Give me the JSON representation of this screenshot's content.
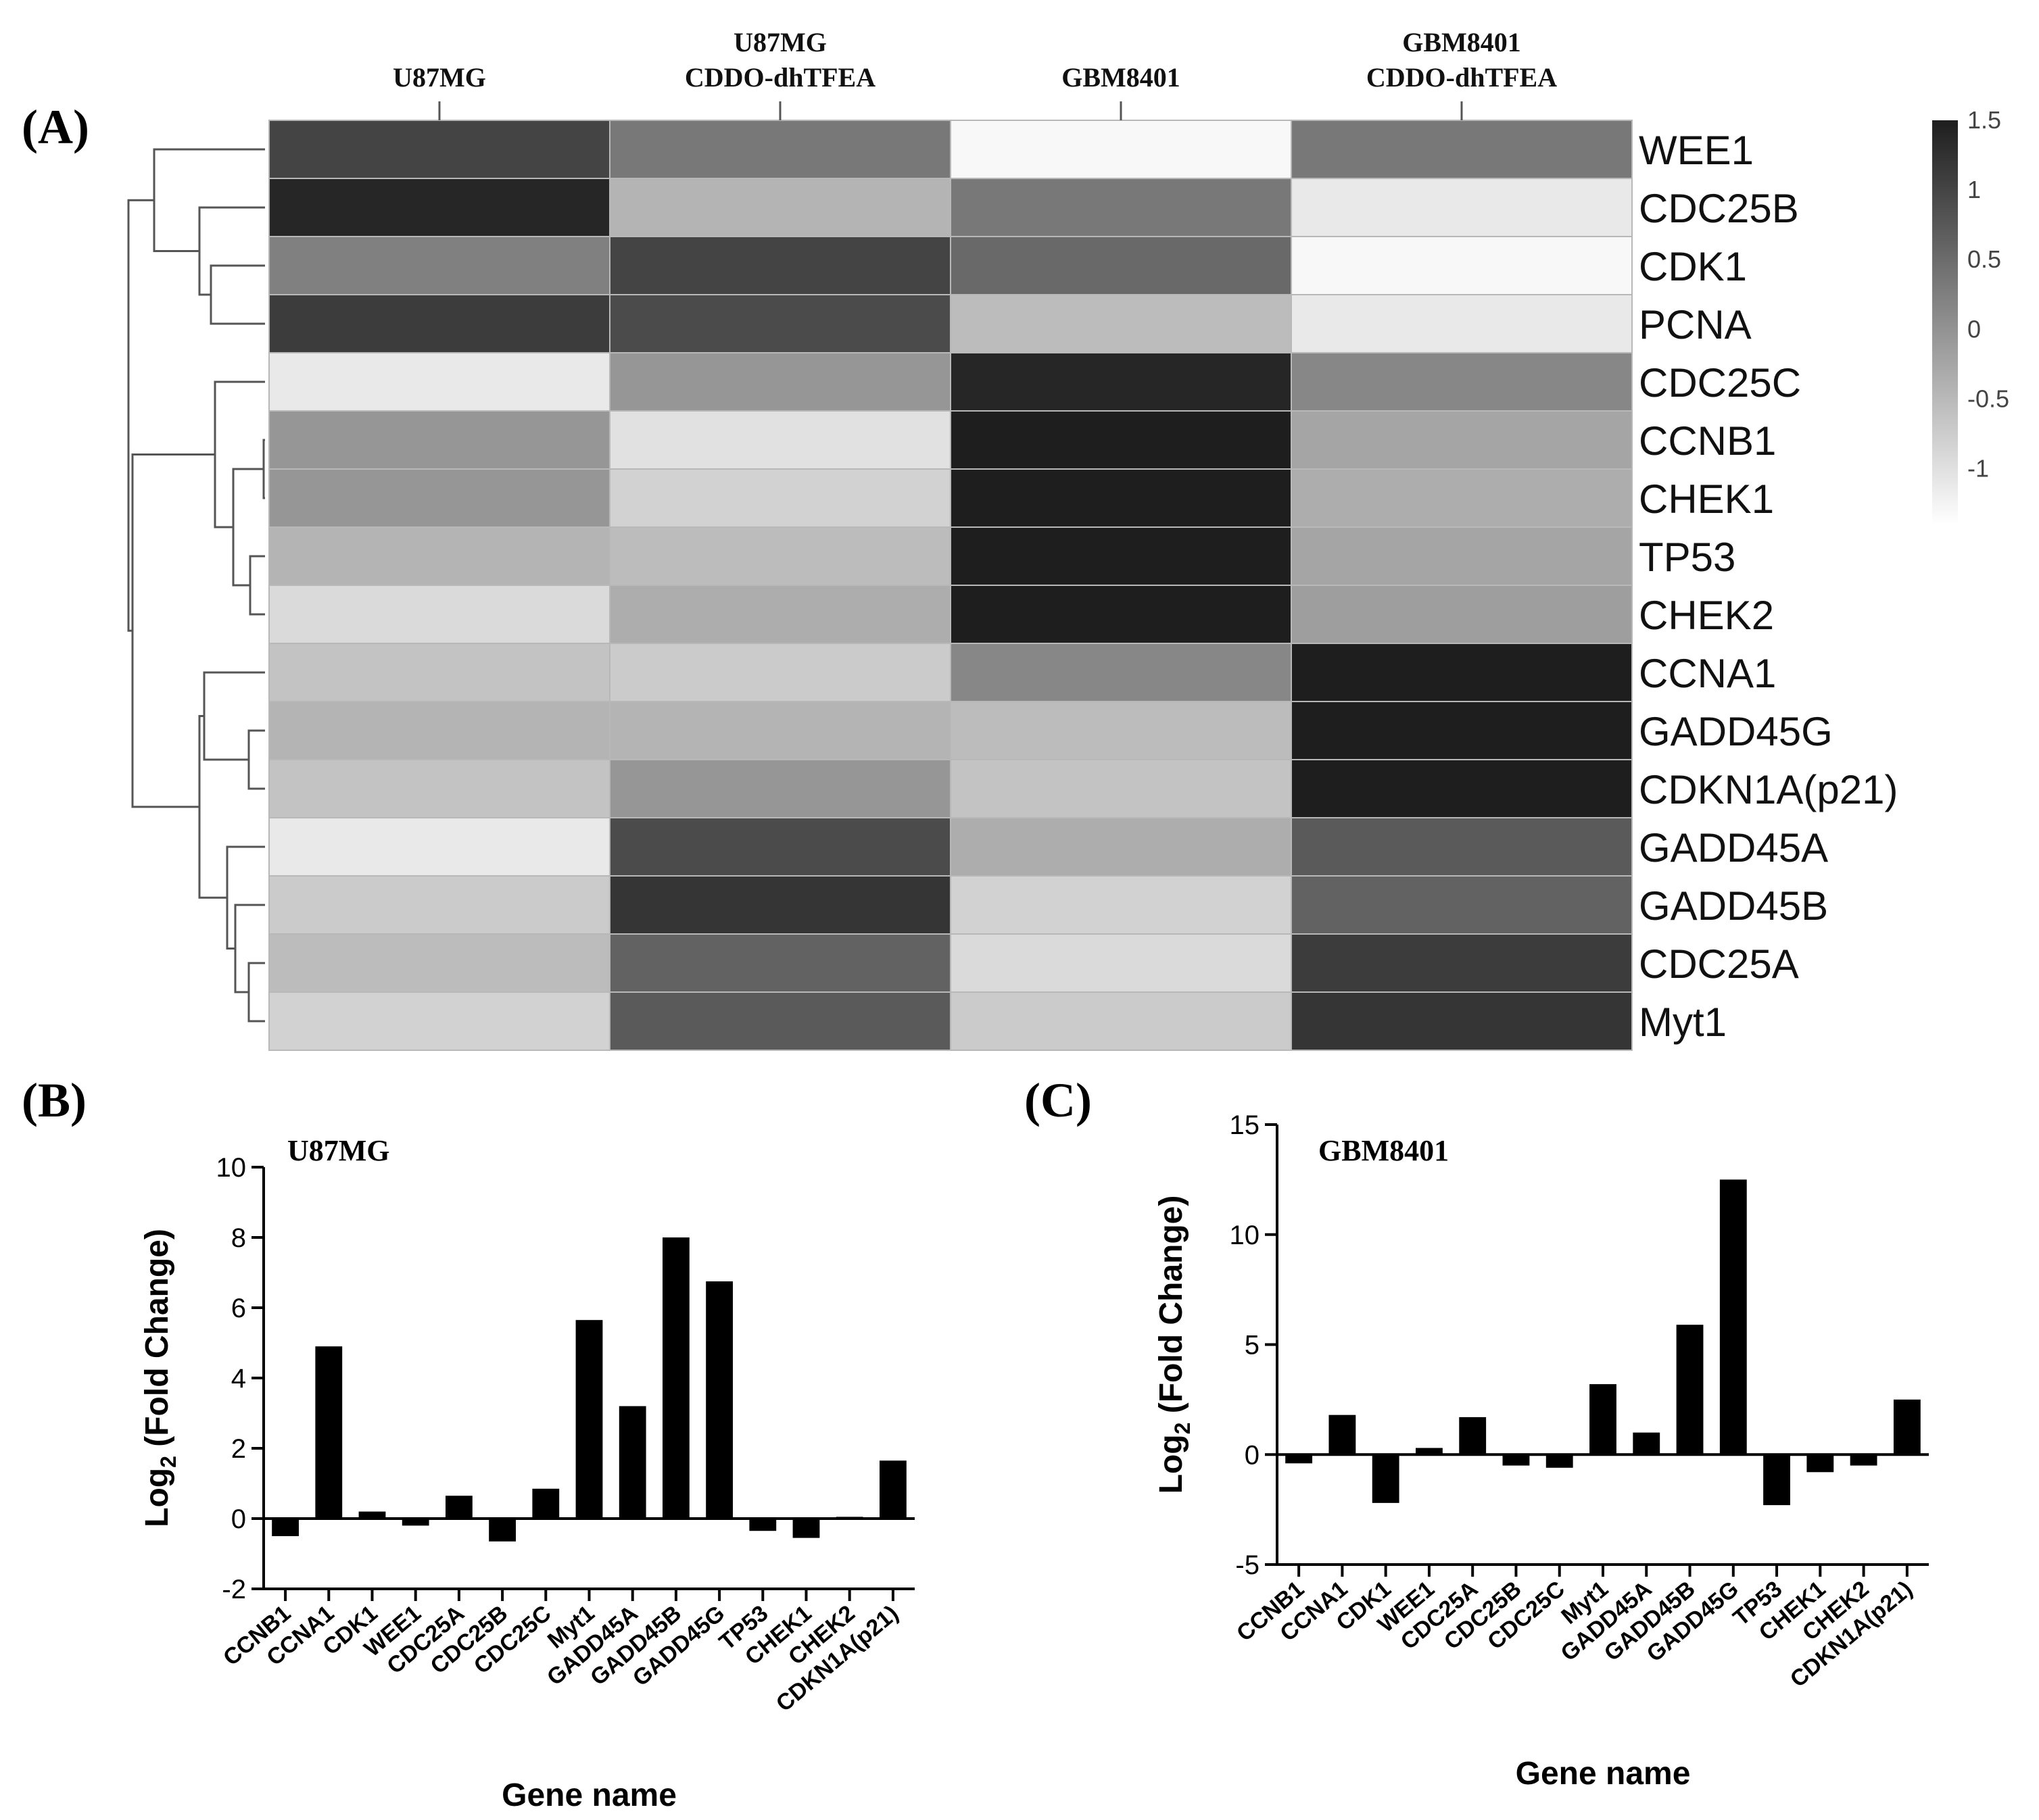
{
  "figure": {
    "panel_a_label": "(A)",
    "panel_b_label": "(B)",
    "panel_c_label": "(C)"
  },
  "chart_data": [
    {
      "type": "heatmap",
      "title": "",
      "columns": [
        "U87MG",
        "U87MG\nCDDO-dhTFEA",
        "GBM8401",
        "GBM8401\nCDDO-dhTFEA"
      ],
      "rows": [
        "WEE1",
        "CDC25B",
        "CDK1",
        "PCNA",
        "CDC25C",
        "CCNB1",
        "CHEK1",
        "TP53",
        "CHEK2",
        "CCNA1",
        "GADD45G",
        "CDKN1A(p21)",
        "GADD45A",
        "GADD45B",
        "CDC25A",
        "Myt1"
      ],
      "values": [
        [
          1.0,
          0.3,
          -1.4,
          0.3
        ],
        [
          1.4,
          -0.5,
          0.3,
          -1.2
        ],
        [
          0.2,
          1.0,
          0.5,
          -1.4
        ],
        [
          1.1,
          0.9,
          -0.6,
          -1.2
        ],
        [
          -1.2,
          -0.1,
          1.4,
          0.1
        ],
        [
          -0.1,
          -1.1,
          1.5,
          -0.3
        ],
        [
          -0.1,
          -0.9,
          1.5,
          -0.4
        ],
        [
          -0.5,
          -0.6,
          1.5,
          -0.3
        ],
        [
          -1.0,
          -0.4,
          1.5,
          -0.2
        ],
        [
          -0.7,
          -0.8,
          0.1,
          1.5
        ],
        [
          -0.5,
          -0.5,
          -0.6,
          1.5
        ],
        [
          -0.7,
          -0.1,
          -0.7,
          1.5
        ],
        [
          -1.2,
          0.9,
          -0.4,
          0.7
        ],
        [
          -0.8,
          1.2,
          -0.9,
          0.6
        ],
        [
          -0.6,
          0.6,
          -1.0,
          1.1
        ],
        [
          -0.9,
          0.7,
          -0.8,
          1.2
        ]
      ],
      "colorbar": {
        "min": -1.4,
        "max": 1.5,
        "ticks": [
          1.5,
          1,
          0.5,
          0,
          -0.5,
          -1
        ],
        "tick_labels": [
          "1.5",
          "1",
          "0.5",
          "0",
          "-0.5",
          "-1"
        ],
        "low_color": "#ffffff",
        "high_color": "#1e1e1e"
      },
      "dendrogram": "rows"
    },
    {
      "type": "bar",
      "title": "U87MG",
      "xlabel": "Gene name",
      "ylabel": "Log2 (Fold Change)",
      "categories": [
        "CCNB1",
        "CCNA1",
        "CDK1",
        "WEE1",
        "CDC25A",
        "CDC25B",
        "CDC25C",
        "Myt1",
        "GADD45A",
        "GADD45B",
        "GADD45G",
        "TP53",
        "CHEK1",
        "CHEK2",
        "CDKN1A(p21)"
      ],
      "values": [
        -0.5,
        4.9,
        0.2,
        -0.2,
        0.65,
        -0.65,
        0.85,
        5.65,
        3.2,
        8.0,
        6.75,
        -0.35,
        -0.55,
        0.05,
        1.65
      ],
      "ylim": [
        -2,
        10
      ],
      "yticks": [
        -2,
        0,
        2,
        4,
        6,
        8,
        10
      ],
      "ytick_labels": [
        "-2",
        "0",
        "2",
        "4",
        "6",
        "8",
        "10"
      ],
      "grid": false
    },
    {
      "type": "bar",
      "title": "GBM8401",
      "xlabel": "Gene name",
      "ylabel": "Log2 (Fold Change)",
      "categories": [
        "CCNB1",
        "CCNA1",
        "CDK1",
        "WEE1",
        "CDC25A",
        "CDC25B",
        "CDC25C",
        "Myt1",
        "GADD45A",
        "GADD45B",
        "GADD45G",
        "TP53",
        "CHEK1",
        "CHEK2",
        "CDKN1A(p21)"
      ],
      "values": [
        -0.4,
        1.8,
        -2.2,
        0.3,
        1.7,
        -0.5,
        -0.6,
        3.2,
        1.0,
        5.9,
        12.5,
        -2.3,
        -0.8,
        -0.5,
        2.5
      ],
      "ylim": [
        -5,
        15
      ],
      "yticks": [
        -5,
        0,
        5,
        10,
        15
      ],
      "ytick_labels": [
        "-5",
        "0",
        "5",
        "10",
        "15"
      ],
      "grid": false
    }
  ]
}
